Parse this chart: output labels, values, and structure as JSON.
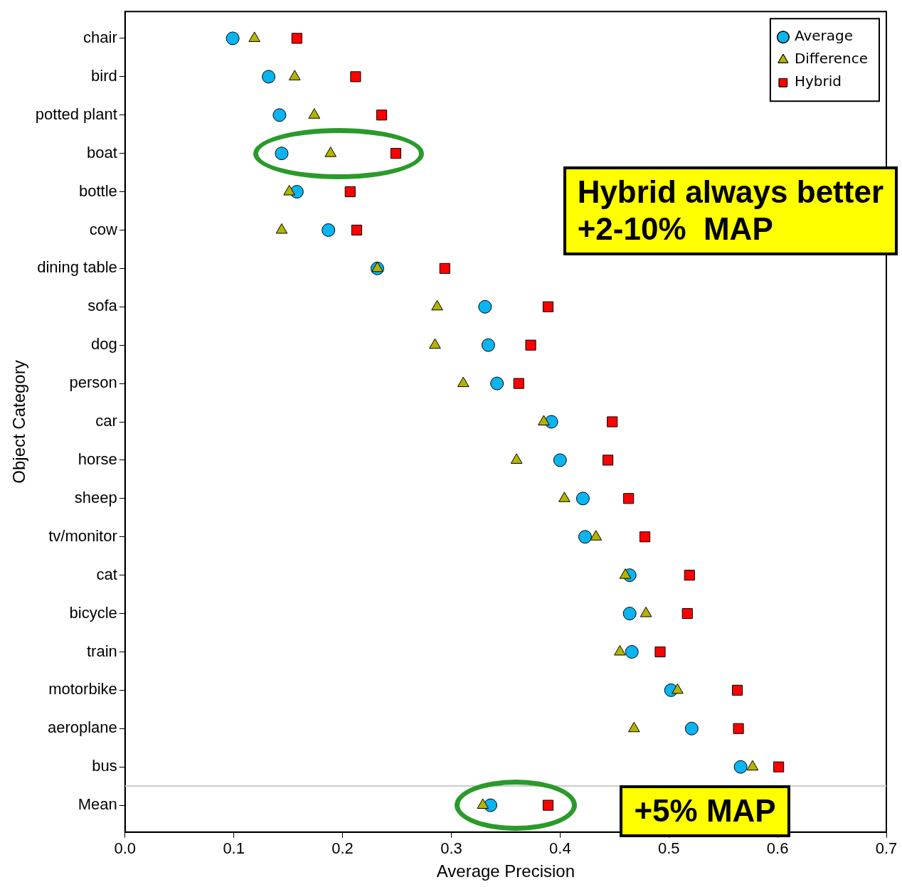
{
  "chart_data": {
    "type": "scatter",
    "xlabel": "Average Precision",
    "ylabel": "Object Category",
    "categories": [
      "chair",
      "bird",
      "potted plant",
      "boat",
      "bottle",
      "cow",
      "dining table",
      "sofa",
      "dog",
      "person",
      "car",
      "horse",
      "sheep",
      "tv/monitor",
      "cat",
      "bicycle",
      "train",
      "motorbike",
      "aeroplane",
      "bus",
      "Mean"
    ],
    "series": [
      {
        "name": "Average",
        "color": "#0ab4f0",
        "marker": "circle",
        "values": [
          0.099,
          0.132,
          0.142,
          0.144,
          0.158,
          0.187,
          0.232,
          0.331,
          0.334,
          0.342,
          0.392,
          0.4,
          0.421,
          0.423,
          0.464,
          0.464,
          0.466,
          0.502,
          0.521,
          0.566,
          0.336
        ]
      },
      {
        "name": "Difference",
        "color": "#b4b400",
        "marker": "triangle",
        "values": [
          0.119,
          0.156,
          0.174,
          0.189,
          0.151,
          0.144,
          0.232,
          0.287,
          0.285,
          0.311,
          0.385,
          0.36,
          0.404,
          0.433,
          0.46,
          0.479,
          0.455,
          0.508,
          0.468,
          0.577,
          0.329
        ]
      },
      {
        "name": "Hybrid",
        "color": "#ff0000",
        "marker": "square",
        "values": [
          0.158,
          0.212,
          0.236,
          0.249,
          0.207,
          0.213,
          0.294,
          0.389,
          0.373,
          0.362,
          0.448,
          0.444,
          0.463,
          0.478,
          0.519,
          0.517,
          0.492,
          0.563,
          0.564,
          0.601,
          0.389
        ]
      }
    ],
    "orientation": "horizontal",
    "xlim": [
      0,
      0.7
    ],
    "xticks": [
      {
        "value": 0,
        "label": "0.0"
      },
      0.1,
      0.2,
      0.3,
      0.4,
      0.5,
      0.6,
      0.7
    ],
    "grid": false,
    "legend": "top right",
    "annotations": [
      "Hybrid always better\n+2-10%  MAP",
      "+5% MAP"
    ]
  }
}
